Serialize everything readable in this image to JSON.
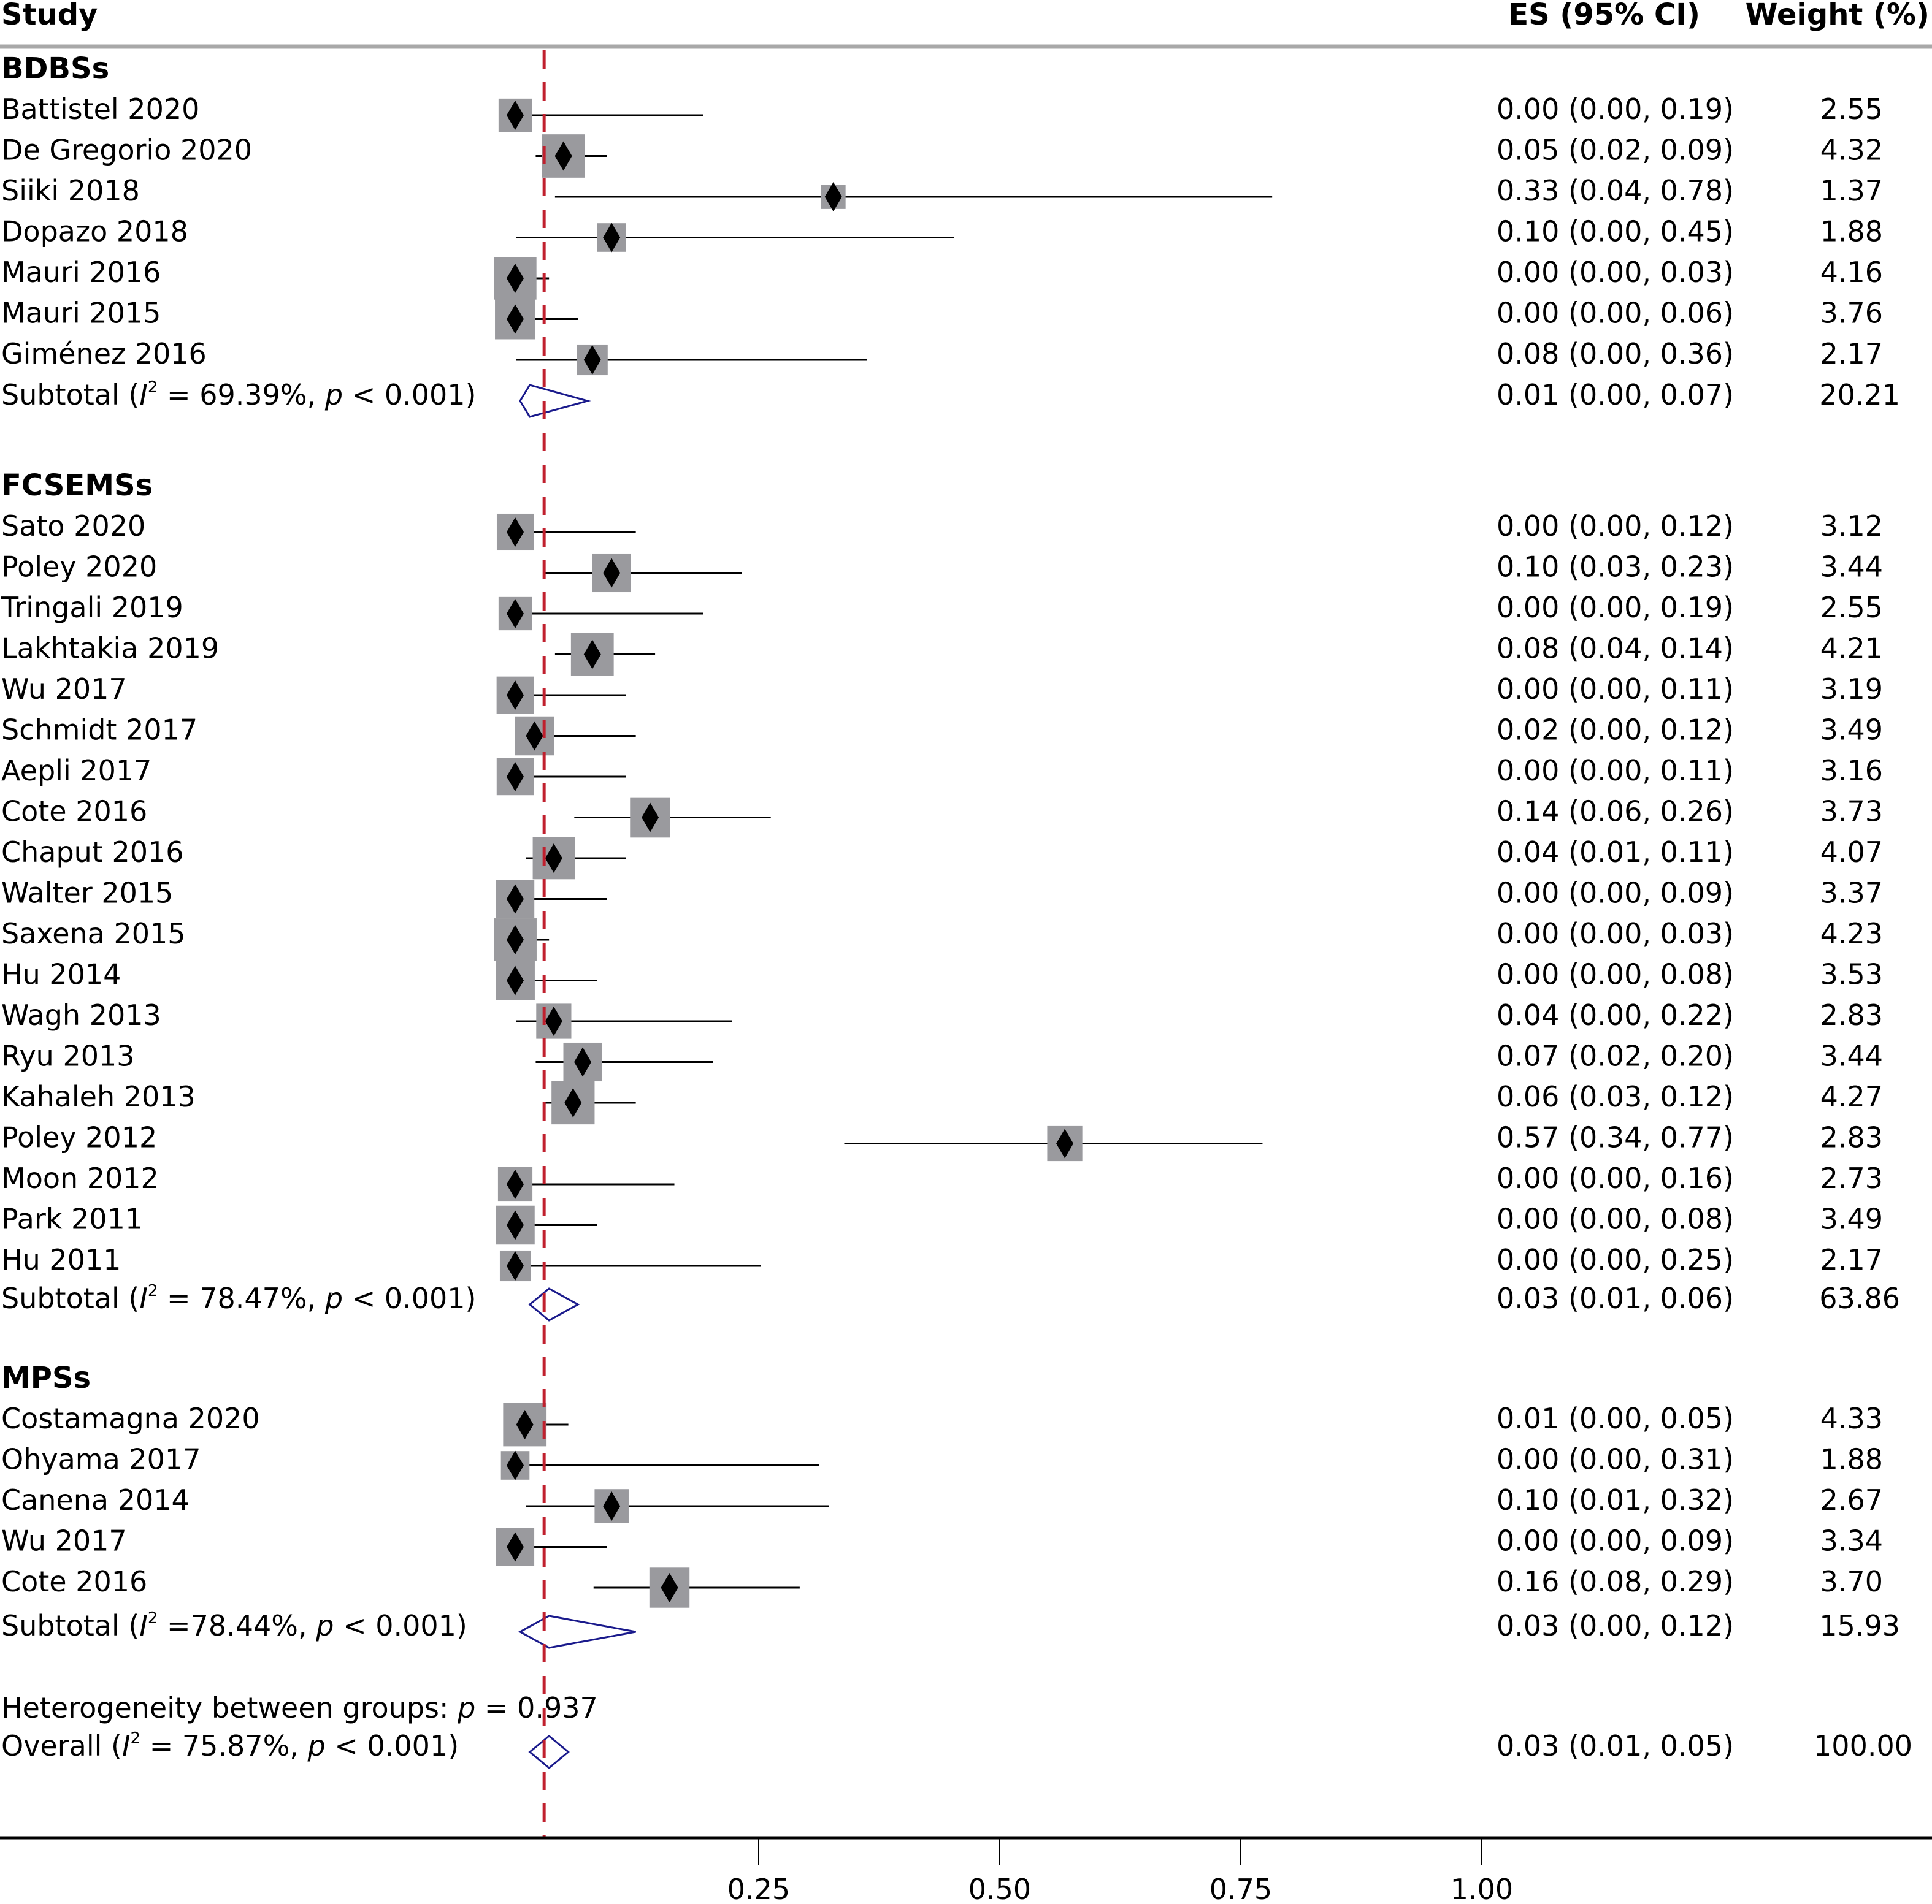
{
  "chart_data": {
    "type": "forest",
    "headers": {
      "study": "Study",
      "es": "ES (95% CI)",
      "weight": "Weight (%)"
    },
    "x_axis": {
      "ticks": [
        0.25,
        0.5,
        0.75,
        1.0
      ],
      "tick_labels": [
        "0.25",
        "0.50",
        "0.75",
        "1.00"
      ],
      "range": [
        -0.01,
        1.5
      ]
    },
    "reference_line": {
      "value": 0.03,
      "style": "dashed",
      "color": "#c0202e"
    },
    "colors": {
      "box": "#9a9a9e",
      "point": "#000000",
      "ci": "#000000",
      "subtotal_diamond": "#1a1a8c",
      "axis": "#000000",
      "header_rule": "#a8a8a8"
    },
    "groups": [
      {
        "name": "BDBSs",
        "studies": [
          {
            "study": "Battistel 2020",
            "es": 0.0,
            "lo": 0.0,
            "hi": 0.19,
            "es_text": "0.00 (0.00, 0.19)",
            "weight": "2.55"
          },
          {
            "study": "De Gregorio 2020",
            "es": 0.05,
            "lo": 0.02,
            "hi": 0.09,
            "es_text": "0.05 (0.02, 0.09)",
            "weight": "4.32"
          },
          {
            "study": "Siiki 2018",
            "es": 0.33,
            "lo": 0.04,
            "hi": 0.78,
            "es_text": "0.33 (0.04, 0.78)",
            "weight": "1.37"
          },
          {
            "study": "Dopazo 2018",
            "es": 0.1,
            "lo": 0.0,
            "hi": 0.45,
            "es_text": "0.10 (0.00, 0.45)",
            "weight": "1.88"
          },
          {
            "study": "Mauri 2016",
            "es": 0.0,
            "lo": 0.0,
            "hi": 0.03,
            "es_text": "0.00 (0.00, 0.03)",
            "weight": "4.16"
          },
          {
            "study": "Mauri 2015",
            "es": 0.0,
            "lo": 0.0,
            "hi": 0.06,
            "es_text": "0.00 (0.00, 0.06)",
            "weight": "3.76"
          },
          {
            "study": "Giménez 2016",
            "es": 0.08,
            "lo": 0.0,
            "hi": 0.36,
            "es_text": "0.08 (0.00, 0.36)",
            "weight": "2.17"
          }
        ],
        "subtotal": {
          "label_prefix": "Subtotal (",
          "i2_symbol": "I",
          "i2_sup": "2",
          "label_mid": " = 69.39%, ",
          "p_symbol": "p",
          "label_end": " < 0.001)",
          "es": 0.01,
          "lo": 0.0,
          "hi": 0.07,
          "es_text": "0.01 (0.00, 0.07)",
          "weight": "20.21"
        }
      },
      {
        "name": "FCSEMSs",
        "studies": [
          {
            "study": "Sato 2020",
            "es": 0.0,
            "lo": 0.0,
            "hi": 0.12,
            "es_text": "0.00 (0.00, 0.12)",
            "weight": "3.12"
          },
          {
            "study": "Poley 2020",
            "es": 0.1,
            "lo": 0.03,
            "hi": 0.23,
            "es_text": "0.10 (0.03, 0.23)",
            "weight": "3.44"
          },
          {
            "study": "Tringali 2019",
            "es": 0.0,
            "lo": 0.0,
            "hi": 0.19,
            "es_text": "0.00 (0.00, 0.19)",
            "weight": "2.55"
          },
          {
            "study": "Lakhtakia 2019",
            "es": 0.08,
            "lo": 0.04,
            "hi": 0.14,
            "es_text": "0.08 (0.04, 0.14)",
            "weight": "4.21"
          },
          {
            "study": "Wu 2017",
            "es": 0.0,
            "lo": 0.0,
            "hi": 0.11,
            "es_text": "0.00 (0.00, 0.11)",
            "weight": "3.19"
          },
          {
            "study": "Schmidt 2017",
            "es": 0.02,
            "lo": 0.0,
            "hi": 0.12,
            "es_text": "0.02 (0.00, 0.12)",
            "weight": "3.49"
          },
          {
            "study": "Aepli 2017",
            "es": 0.0,
            "lo": 0.0,
            "hi": 0.11,
            "es_text": "0.00 (0.00, 0.11)",
            "weight": "3.16"
          },
          {
            "study": "Cote 2016",
            "es": 0.14,
            "lo": 0.06,
            "hi": 0.26,
            "es_text": "0.14 (0.06, 0.26)",
            "weight": "3.73"
          },
          {
            "study": "Chaput 2016",
            "es": 0.04,
            "lo": 0.01,
            "hi": 0.11,
            "es_text": "0.04 (0.01, 0.11)",
            "weight": "4.07"
          },
          {
            "study": "Walter 2015",
            "es": 0.0,
            "lo": 0.0,
            "hi": 0.09,
            "es_text": "0.00 (0.00, 0.09)",
            "weight": "3.37"
          },
          {
            "study": "Saxena 2015",
            "es": 0.0,
            "lo": 0.0,
            "hi": 0.03,
            "es_text": "0.00 (0.00, 0.03)",
            "weight": "4.23"
          },
          {
            "study": "Hu 2014",
            "es": 0.0,
            "lo": 0.0,
            "hi": 0.08,
            "es_text": "0.00 (0.00, 0.08)",
            "weight": "3.53"
          },
          {
            "study": "Wagh 2013",
            "es": 0.04,
            "lo": 0.0,
            "hi": 0.22,
            "es_text": "0.04 (0.00, 0.22)",
            "weight": "2.83"
          },
          {
            "study": "Ryu 2013",
            "es": 0.07,
            "lo": 0.02,
            "hi": 0.2,
            "es_text": "0.07 (0.02, 0.20)",
            "weight": "3.44"
          },
          {
            "study": "Kahaleh 2013",
            "es": 0.06,
            "lo": 0.03,
            "hi": 0.12,
            "es_text": "0.06 (0.03, 0.12)",
            "weight": "4.27"
          },
          {
            "study": "Poley 2012",
            "es": 0.57,
            "lo": 0.34,
            "hi": 0.77,
            "es_text": "0.57 (0.34, 0.77)",
            "weight": "2.83"
          },
          {
            "study": "Moon 2012",
            "es": 0.0,
            "lo": 0.0,
            "hi": 0.16,
            "es_text": "0.00 (0.00, 0.16)",
            "weight": "2.73"
          },
          {
            "study": "Park 2011",
            "es": 0.0,
            "lo": 0.0,
            "hi": 0.08,
            "es_text": "0.00 (0.00, 0.08)",
            "weight": "3.49"
          },
          {
            "study": "Hu 2011",
            "es": 0.0,
            "lo": 0.0,
            "hi": 0.25,
            "es_text": "0.00 (0.00, 0.25)",
            "weight": "2.17"
          }
        ],
        "subtotal": {
          "label_prefix": "Subtotal (",
          "i2_symbol": "I",
          "i2_sup": "2",
          "label_mid": " = 78.47%, ",
          "p_symbol": "p",
          "label_end": " < 0.001)",
          "es": 0.03,
          "lo": 0.01,
          "hi": 0.06,
          "es_text": "0.03 (0.01, 0.06)",
          "weight": "63.86"
        }
      },
      {
        "name": "MPSs",
        "studies": [
          {
            "study": "Costamagna 2020",
            "es": 0.01,
            "lo": 0.0,
            "hi": 0.05,
            "es_text": "0.01 (0.00, 0.05)",
            "weight": "4.33"
          },
          {
            "study": "Ohyama 2017",
            "es": 0.0,
            "lo": 0.0,
            "hi": 0.31,
            "es_text": "0.00 (0.00, 0.31)",
            "weight": "1.88"
          },
          {
            "study": "Canena 2014",
            "es": 0.1,
            "lo": 0.01,
            "hi": 0.32,
            "es_text": "0.10 (0.01, 0.32)",
            "weight": "2.67"
          },
          {
            "study": "Wu 2017",
            "es": 0.0,
            "lo": 0.0,
            "hi": 0.09,
            "es_text": "0.00 (0.00, 0.09)",
            "weight": "3.34"
          },
          {
            "study": "Cote 2016",
            "es": 0.16,
            "lo": 0.08,
            "hi": 0.29,
            "es_text": "0.16 (0.08, 0.29)",
            "weight": "3.70"
          }
        ],
        "subtotal": {
          "label_prefix": "Subtotal (",
          "i2_symbol": "I",
          "i2_sup": "2",
          "label_mid": " =78.44%, ",
          "p_symbol": "p",
          "label_end": " < 0.001)",
          "es": 0.03,
          "lo": 0.0,
          "hi": 0.12,
          "es_text": "0.03 (0.00, 0.12)",
          "weight": "15.93"
        }
      }
    ],
    "heterogeneity": {
      "label": "Heterogeneity between groups: ",
      "p_symbol": "p",
      "value": " = 0.937"
    },
    "overall": {
      "label_prefix": "Overall (",
      "i2_symbol": "I",
      "i2_sup": "2",
      "label_mid": " = 75.87%, ",
      "p_symbol": "p",
      "label_end": " < 0.001)",
      "es": 0.03,
      "lo": 0.01,
      "hi": 0.05,
      "es_text": "0.03 (0.01, 0.05)",
      "weight": "100.00"
    }
  }
}
